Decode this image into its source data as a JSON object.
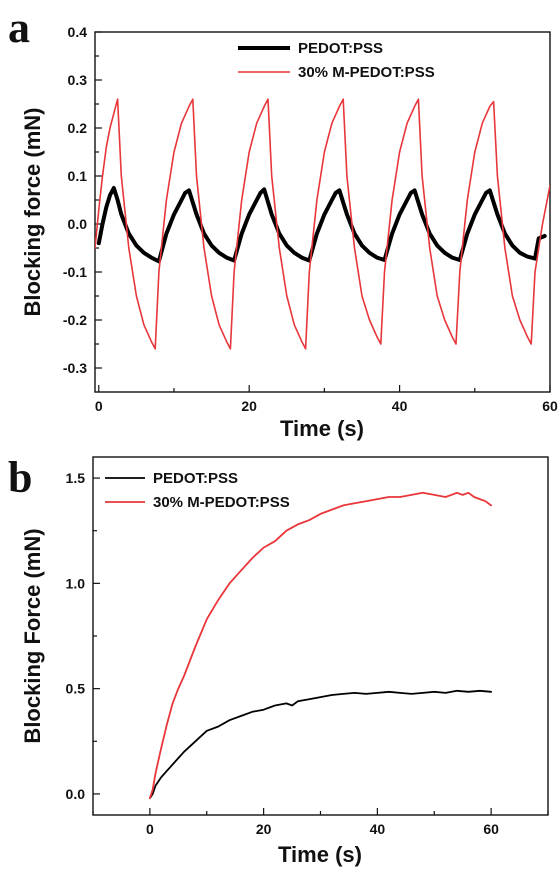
{
  "chart_data": [
    {
      "panel": "a",
      "type": "line",
      "xlabel": "Time (s)",
      "ylabel": "Blocking force (mN)",
      "xlim": [
        -0.5,
        60
      ],
      "ylim": [
        -0.35,
        0.4
      ],
      "xticks": [
        0,
        20,
        40,
        60
      ],
      "xticks_minor": [
        10,
        30,
        50
      ],
      "yticks": [
        -0.3,
        -0.2,
        -0.1,
        0.0,
        0.1,
        0.2,
        0.3,
        0.4
      ],
      "grid": false,
      "legend_position": "top-center",
      "series": [
        {
          "name": "PEDOT:PSS",
          "color": "#000000",
          "style": "thick",
          "x": [
            0,
            0.5,
            1,
            1.5,
            2,
            2.5,
            3,
            4,
            5,
            6,
            7,
            8,
            9,
            10,
            11,
            11.5,
            12,
            13,
            14,
            15,
            16,
            17,
            18,
            19,
            20,
            21,
            21.5,
            22,
            23,
            24,
            25,
            26,
            27,
            28,
            29,
            30,
            31,
            31.5,
            32,
            33,
            34,
            35,
            36,
            37,
            38,
            39,
            40,
            41,
            41.5,
            42,
            43,
            44,
            45,
            46,
            47,
            48,
            49,
            50,
            51,
            51.5,
            52,
            53,
            54,
            55,
            56,
            57,
            58,
            58.5,
            59.3
          ],
          "y": [
            -0.04,
            0.0,
            0.035,
            0.06,
            0.075,
            0.05,
            0.02,
            -0.02,
            -0.045,
            -0.06,
            -0.07,
            -0.078,
            -0.02,
            0.02,
            0.05,
            0.065,
            0.07,
            0.02,
            -0.02,
            -0.045,
            -0.06,
            -0.07,
            -0.076,
            -0.02,
            0.02,
            0.05,
            0.065,
            0.072,
            0.02,
            -0.02,
            -0.045,
            -0.06,
            -0.07,
            -0.076,
            -0.02,
            0.02,
            0.05,
            0.065,
            0.07,
            0.02,
            -0.02,
            -0.045,
            -0.06,
            -0.07,
            -0.075,
            -0.02,
            0.02,
            0.05,
            0.065,
            0.07,
            0.02,
            -0.02,
            -0.045,
            -0.06,
            -0.07,
            -0.075,
            -0.02,
            0.02,
            0.05,
            0.065,
            0.07,
            0.02,
            -0.02,
            -0.045,
            -0.06,
            -0.068,
            -0.072,
            -0.03,
            -0.025
          ]
        },
        {
          "name": "30% M-PEDOT:PSS",
          "color": "#e8363a",
          "style": "thin",
          "x": [
            -0.5,
            0,
            0.5,
            1,
            1.5,
            2,
            2.5,
            3,
            4,
            5,
            6,
            7,
            7.5,
            8,
            9,
            10,
            11,
            12,
            12.5,
            13,
            14,
            15,
            16,
            17,
            17.5,
            18,
            19,
            20,
            21,
            22,
            22.5,
            23,
            24,
            25,
            26,
            27,
            27.5,
            28,
            29,
            30,
            31,
            32,
            32.5,
            33,
            34,
            35,
            36,
            37,
            37.5,
            38,
            39,
            40,
            41,
            42,
            42.5,
            43,
            44,
            45,
            46,
            47,
            47.5,
            48,
            49,
            50,
            51,
            52,
            52.5,
            53,
            54,
            55,
            56,
            57,
            57.5,
            58,
            59,
            60
          ],
          "y": [
            -0.05,
            0.03,
            0.1,
            0.16,
            0.2,
            0.23,
            0.26,
            0.1,
            -0.05,
            -0.15,
            -0.21,
            -0.245,
            -0.26,
            -0.1,
            0.05,
            0.15,
            0.21,
            0.245,
            0.26,
            0.1,
            -0.05,
            -0.15,
            -0.21,
            -0.245,
            -0.26,
            -0.1,
            0.05,
            0.15,
            0.21,
            0.245,
            0.26,
            0.1,
            -0.05,
            -0.15,
            -0.21,
            -0.245,
            -0.26,
            -0.1,
            0.05,
            0.15,
            0.21,
            0.245,
            0.26,
            0.1,
            -0.05,
            -0.15,
            -0.2,
            -0.235,
            -0.25,
            -0.1,
            0.05,
            0.15,
            0.21,
            0.245,
            0.26,
            0.1,
            -0.05,
            -0.15,
            -0.2,
            -0.235,
            -0.25,
            -0.1,
            0.05,
            0.15,
            0.21,
            0.245,
            0.255,
            0.1,
            -0.05,
            -0.15,
            -0.2,
            -0.235,
            -0.25,
            -0.1,
            0.0,
            0.08
          ]
        }
      ]
    },
    {
      "panel": "b",
      "type": "line",
      "xlabel": "Time (s)",
      "ylabel": "Blocking Force (mN)",
      "xlim": [
        -10,
        70
      ],
      "ylim": [
        -0.1,
        1.6
      ],
      "xticks": [
        0,
        20,
        40,
        60
      ],
      "xticks_minor": [
        -10,
        10,
        30,
        50,
        70
      ],
      "yticks": [
        0.0,
        0.5,
        1.0,
        1.5
      ],
      "grid": false,
      "legend_position": "top-left",
      "series": [
        {
          "name": "PEDOT:PSS",
          "color": "#000000",
          "style": "thin",
          "x": [
            0,
            0.5,
            1,
            2,
            3,
            4,
            5,
            6,
            8,
            10,
            12,
            14,
            16,
            18,
            20,
            22,
            24,
            25,
            26,
            28,
            30,
            32,
            34,
            36,
            38,
            40,
            42,
            44,
            46,
            48,
            50,
            52,
            54,
            56,
            58,
            60
          ],
          "y": [
            -0.02,
            0.0,
            0.04,
            0.08,
            0.11,
            0.14,
            0.17,
            0.2,
            0.25,
            0.3,
            0.32,
            0.35,
            0.37,
            0.39,
            0.4,
            0.42,
            0.43,
            0.42,
            0.44,
            0.45,
            0.46,
            0.47,
            0.475,
            0.48,
            0.475,
            0.48,
            0.485,
            0.48,
            0.475,
            0.48,
            0.485,
            0.48,
            0.49,
            0.485,
            0.49,
            0.485
          ]
        },
        {
          "name": "30% M-PEDOT:PSS",
          "color": "#e8363a",
          "style": "thin",
          "x": [
            0,
            0.5,
            1,
            2,
            3,
            4,
            5,
            6,
            8,
            10,
            12,
            14,
            16,
            18,
            20,
            22,
            24,
            26,
            28,
            30,
            32,
            34,
            36,
            38,
            40,
            42,
            44,
            46,
            48,
            50,
            52,
            54,
            55,
            56,
            57,
            58,
            59,
            60
          ],
          "y": [
            -0.02,
            0.02,
            0.1,
            0.22,
            0.33,
            0.43,
            0.5,
            0.56,
            0.7,
            0.83,
            0.92,
            1.0,
            1.06,
            1.12,
            1.17,
            1.2,
            1.25,
            1.28,
            1.3,
            1.33,
            1.35,
            1.37,
            1.38,
            1.39,
            1.4,
            1.41,
            1.41,
            1.42,
            1.43,
            1.42,
            1.41,
            1.43,
            1.42,
            1.43,
            1.41,
            1.4,
            1.39,
            1.37
          ]
        }
      ]
    }
  ]
}
